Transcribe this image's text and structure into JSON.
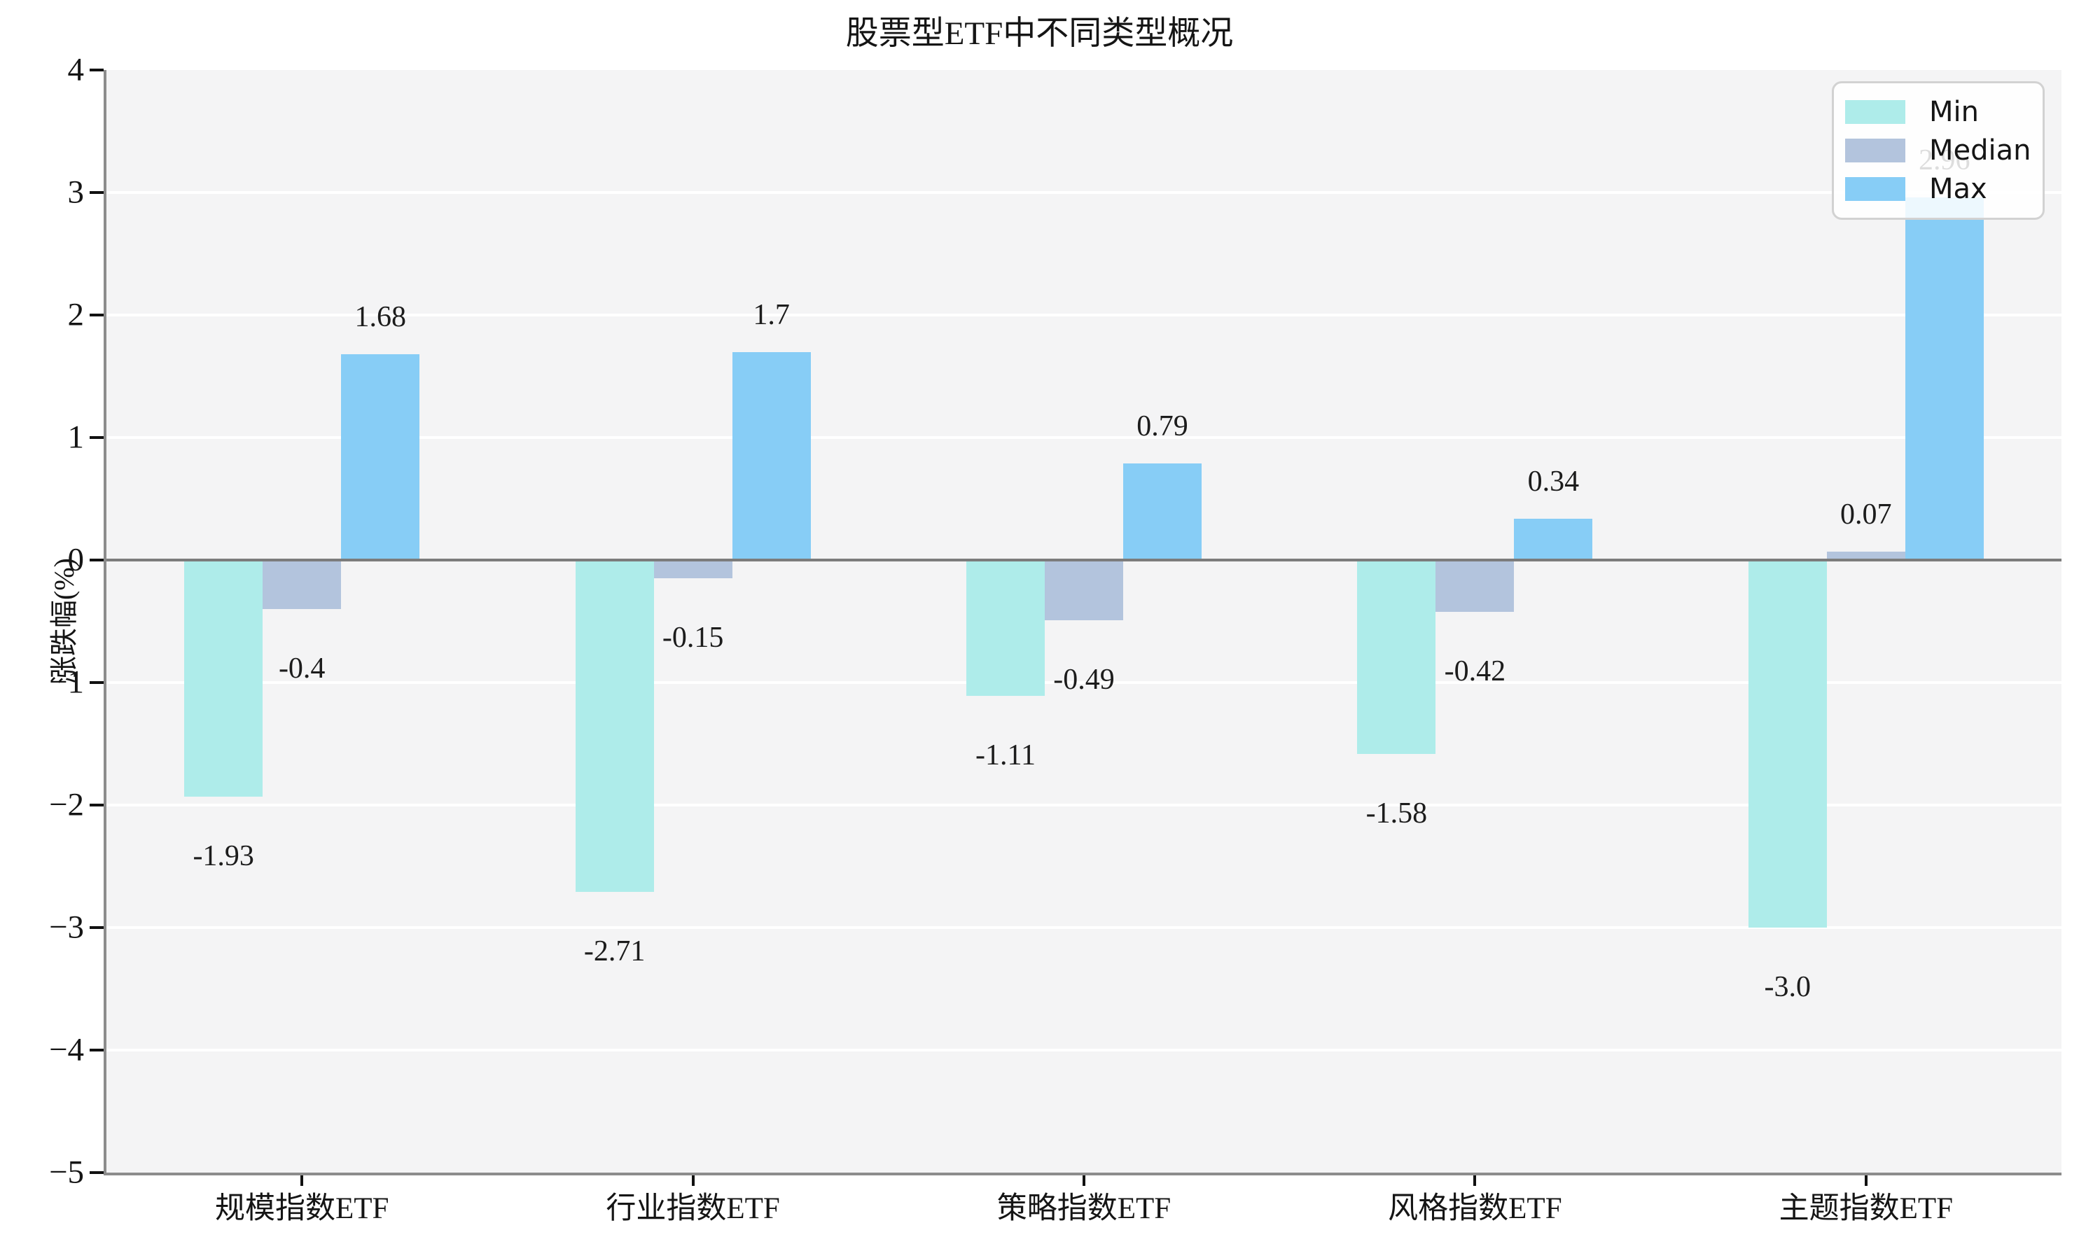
{
  "chart_data": {
    "type": "bar",
    "title": "股票型ETF中不同类型概况",
    "ylabel": "涨跌幅(%)",
    "xlabel": "",
    "categories": [
      "规模指数ETF",
      "行业指数ETF",
      "策略指数ETF",
      "风格指数ETF",
      "主题指数ETF"
    ],
    "series": [
      {
        "name": "Min",
        "color": "#aeecea",
        "values": [
          -1.93,
          -2.71,
          -1.11,
          -1.58,
          -3.0
        ],
        "labels": [
          "-1.93",
          "-2.71",
          "-1.11",
          "-1.58",
          "-3.0"
        ]
      },
      {
        "name": "Median",
        "color": "#b3c4dd",
        "values": [
          -0.4,
          -0.15,
          -0.49,
          -0.42,
          0.07
        ],
        "labels": [
          "-0.4",
          "-0.15",
          "-0.49",
          "-0.42",
          "0.07"
        ]
      },
      {
        "name": "Max",
        "color": "#87cdf6",
        "values": [
          1.68,
          1.7,
          0.79,
          0.34,
          2.96
        ],
        "labels": [
          "1.68",
          "1.7",
          "0.79",
          "0.34",
          "2.96"
        ]
      }
    ],
    "ylim": [
      -5,
      4
    ],
    "yticks": [
      {
        "value": 4,
        "label": "4"
      },
      {
        "value": 3,
        "label": "3"
      },
      {
        "value": 2,
        "label": "2"
      },
      {
        "value": 1,
        "label": "1"
      },
      {
        "value": 0,
        "label": "0"
      },
      {
        "value": -1,
        "label": "−1"
      },
      {
        "value": -2,
        "label": "−2"
      },
      {
        "value": -3,
        "label": "−3"
      },
      {
        "value": -4,
        "label": "−4"
      },
      {
        "value": -5,
        "label": "−5"
      }
    ],
    "legend_position": "top-right",
    "grid": "horizontal-white",
    "plot_background": "#f4f4f5",
    "zero_line_color": "#7c7c7c"
  }
}
